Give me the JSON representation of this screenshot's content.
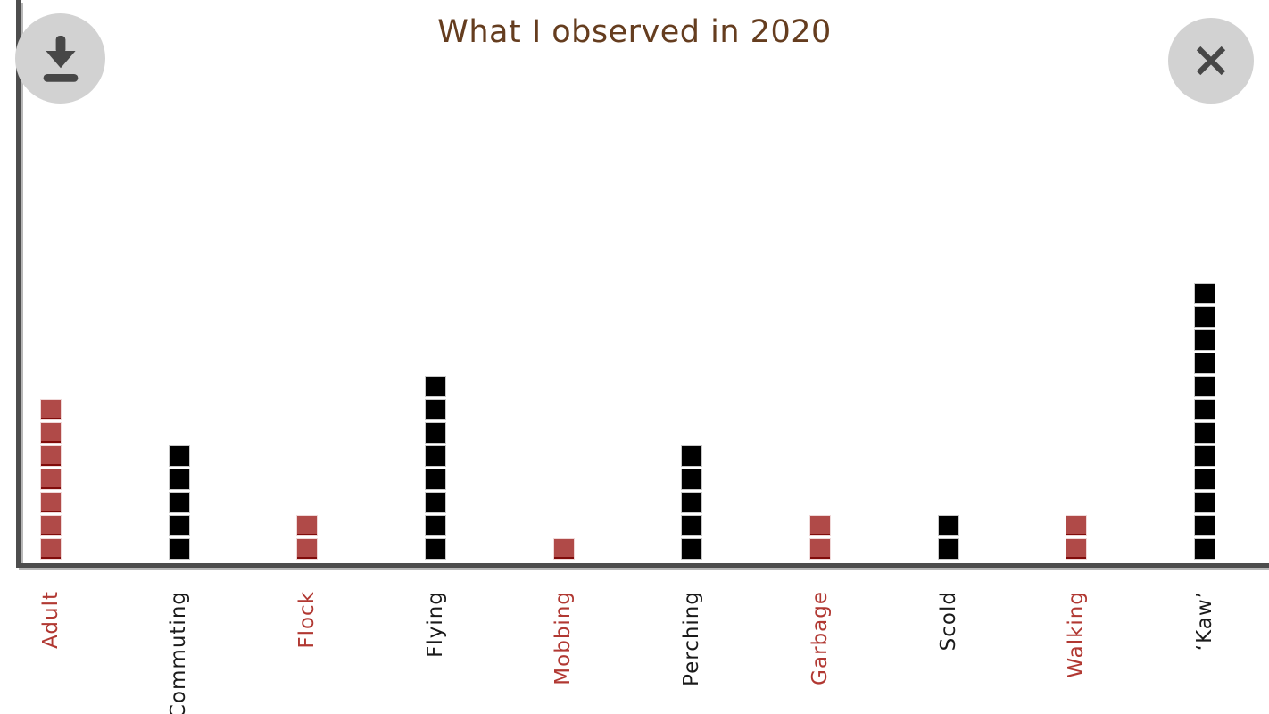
{
  "chart_data": {
    "type": "bar",
    "variant": "unit-square-pictogram",
    "title": "What I observed in 2020",
    "categories": [
      "Adult",
      "Commuting",
      "Flock",
      "Flying",
      "Mobbing",
      "Perching",
      "Garbage",
      "Scold",
      "Walking",
      "‘Kaw’"
    ],
    "values": [
      7,
      5,
      2,
      8,
      1,
      5,
      2,
      2,
      2,
      12
    ],
    "bar_colors": [
      "#b04a48",
      "#000000",
      "#b04a48",
      "#000000",
      "#b04a48",
      "#000000",
      "#b04a48",
      "#000000",
      "#b04a48",
      "#000000"
    ],
    "label_colors": [
      "#b13832",
      "#1a1a1a",
      "#b13832",
      "#1a1a1a",
      "#b13832",
      "#1a1a1a",
      "#b13832",
      "#1a1a1a",
      "#b13832",
      "#1a1a1a"
    ],
    "xlabel": "",
    "ylabel": "",
    "ylim": [
      0,
      12
    ],
    "grid": false,
    "legend": false,
    "x_tick_label_rotation": -90,
    "unit_square_size_px": 22
  },
  "toolbar": {
    "download_icon": "download-icon",
    "close_icon": "close-icon"
  },
  "colors": {
    "background": "#ffffff",
    "title_text": "#653d1f",
    "axis_line": "#4d4d4d",
    "axis_shadow": "#b8b8b8",
    "red_square_fill": "#b04a48",
    "red_square_bottom_edge": "#8c1212",
    "red_square_outline": "#f0d9d9",
    "black_square_fill": "#000000",
    "black_square_outline": "#c9c9c9",
    "red_label_text": "#b13832",
    "black_label_text": "#1a1a1a",
    "button_circle": "#d2d2d2",
    "button_glyph": "#474747"
  }
}
